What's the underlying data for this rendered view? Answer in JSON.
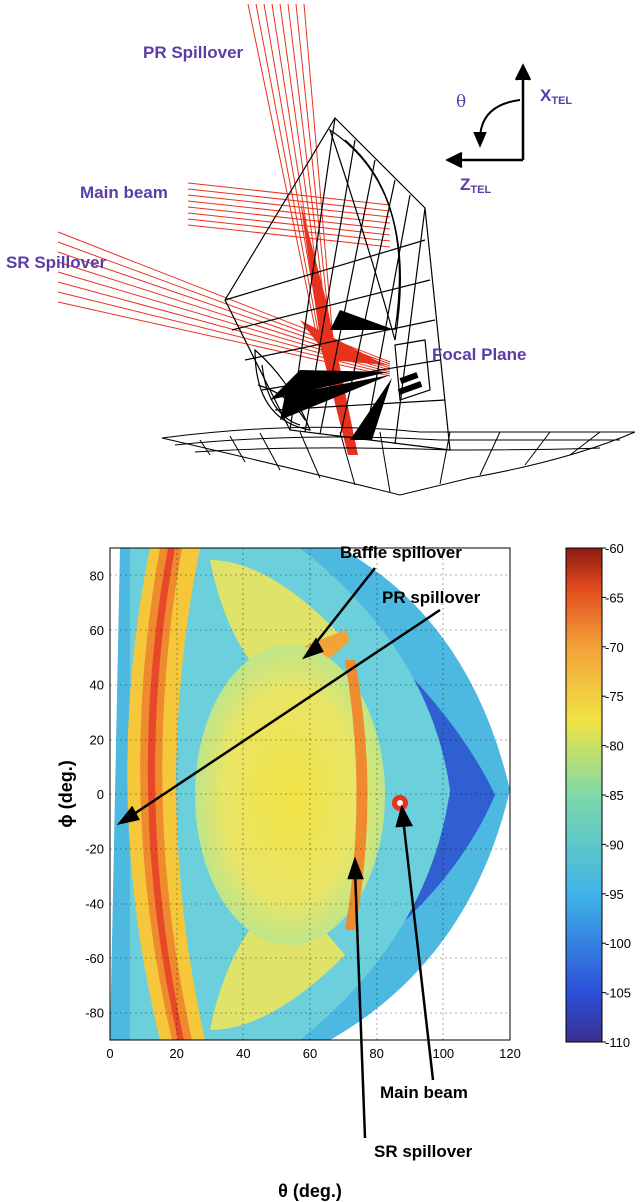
{
  "diagram": {
    "labels": {
      "pr_spillover": "PR Spillover",
      "main_beam": "Main beam",
      "sr_spillover": "SR Spillover",
      "focal_plane": "Focal Plane",
      "theta": "θ",
      "x_tel": "X",
      "z_tel": "Z",
      "tel_sub": "TEL"
    }
  },
  "chart_data": {
    "type": "heatmap",
    "xlabel": "θ (deg.)",
    "ylabel": "ϕ (deg.)",
    "xlim": [
      0,
      120
    ],
    "ylim": [
      -90,
      90
    ],
    "xticks": [
      0,
      20,
      40,
      60,
      80,
      100,
      120
    ],
    "yticks": [
      80,
      60,
      40,
      20,
      0,
      -20,
      -40,
      -60,
      -80
    ],
    "grid": true,
    "colorbar": {
      "min": -110,
      "max": -60,
      "ticks": [
        -60,
        -65,
        -70,
        -75,
        -80,
        -85,
        -90,
        -95,
        -100,
        -105,
        -110
      ]
    },
    "annotations": [
      {
        "text": "Baffle spillover",
        "theta": 60,
        "phi": 60
      },
      {
        "text": "PR spillover",
        "theta": 10,
        "phi": 5
      },
      {
        "text": "Main beam",
        "theta": 87,
        "phi": 3
      },
      {
        "text": "SR spillover",
        "theta": 73,
        "phi": 3
      }
    ]
  }
}
